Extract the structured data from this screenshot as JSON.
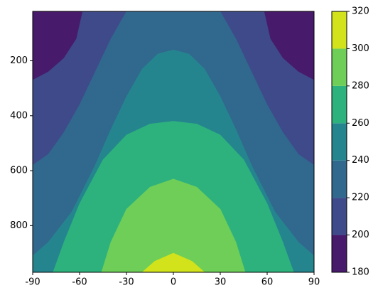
{
  "chart_data": {
    "type": "contour",
    "xlim": [
      -90,
      90
    ],
    "xticks": [
      -90,
      -60,
      -30,
      0,
      30,
      60,
      90
    ],
    "ylim": [
      970,
      20
    ],
    "yticks": [
      200,
      400,
      600,
      800
    ],
    "levels": [
      180,
      200,
      220,
      240,
      260,
      280,
      300,
      320
    ],
    "colors": [
      "#471a6c",
      "#3e4a89",
      "#31688e",
      "#25858e",
      "#2db27d",
      "#6ece58",
      "#d2e21b"
    ],
    "contours": [
      {
        "x": [
          -90,
          -80,
          -70,
          -62,
          -58,
          58,
          62,
          70,
          80,
          90
        ],
        "y": [
          270,
          240,
          190,
          120,
          20,
          20,
          120,
          190,
          240,
          270
        ]
      },
      {
        "x": [
          -90,
          -80,
          -70,
          -60,
          -50,
          -40,
          -30,
          30,
          40,
          50,
          60,
          70,
          80,
          90
        ],
        "y": [
          580,
          540,
          460,
          360,
          240,
          120,
          20,
          20,
          120,
          240,
          360,
          460,
          540,
          580
        ]
      },
      {
        "x": [
          -90,
          -80,
          -65,
          -50,
          -40,
          -30,
          -20,
          -10,
          0,
          10,
          20,
          30,
          40,
          50,
          65,
          80,
          90
        ],
        "y": [
          910,
          860,
          750,
          580,
          450,
          330,
          230,
          175,
          160,
          175,
          230,
          330,
          450,
          580,
          750,
          860,
          910
        ]
      },
      {
        "x": [
          -77,
          -70,
          -60,
          -45,
          -30,
          -15,
          0,
          15,
          30,
          45,
          60,
          70,
          77
        ],
        "y": [
          970,
          860,
          720,
          560,
          470,
          430,
          420,
          430,
          470,
          560,
          720,
          860,
          970
        ]
      },
      {
        "x": [
          -46,
          -40,
          -30,
          -15,
          0,
          15,
          30,
          40,
          46
        ],
        "y": [
          970,
          860,
          740,
          660,
          630,
          660,
          740,
          860,
          970
        ]
      },
      {
        "x": [
          -20,
          -12,
          0,
          12,
          20
        ],
        "y": [
          970,
          930,
          900,
          930,
          970
        ]
      }
    ]
  }
}
